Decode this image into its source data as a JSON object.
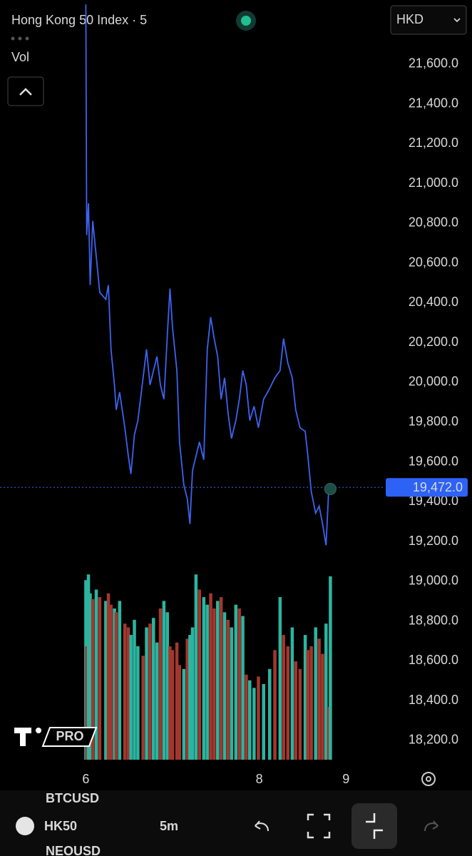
{
  "chart_data": {
    "type": "line",
    "title": "Hong Kong 50 Index · 5",
    "color": "#3d63f0",
    "x": [
      6.0,
      6.01,
      6.03,
      6.05,
      6.08,
      6.12,
      6.16,
      6.23,
      6.26,
      6.29,
      6.33,
      6.35,
      6.39,
      6.45,
      6.49,
      6.52,
      6.56,
      6.6,
      6.66,
      6.7,
      6.74,
      6.78,
      6.82,
      6.86,
      6.9,
      6.94,
      6.97,
      7.0,
      7.05,
      7.08,
      7.13,
      7.17,
      7.2,
      7.23,
      7.27,
      7.31,
      7.36,
      7.4,
      7.44,
      7.48,
      7.52,
      7.56,
      7.6,
      7.64,
      7.68,
      7.73,
      7.77,
      7.81,
      7.85,
      7.89,
      7.94,
      7.99,
      8.05,
      8.12,
      8.18,
      8.24,
      8.28,
      8.33,
      8.38,
      8.42,
      8.47,
      8.53,
      8.56,
      8.6,
      8.65,
      8.69,
      8.73,
      8.77,
      8.8,
      8.82
    ],
    "values": [
      21900,
      20740,
      20900,
      20489,
      20811,
      20632,
      20453,
      20417,
      20489,
      20166,
      19987,
      19862,
      19951,
      19772,
      19629,
      19539,
      19736,
      19808,
      20023,
      20166,
      19987,
      20059,
      20130,
      19987,
      19915,
      20238,
      20471,
      20274,
      20059,
      19700,
      19485,
      19414,
      19288,
      19557,
      19629,
      19700,
      19611,
      20166,
      20328,
      20220,
      20130,
      19915,
      20023,
      19844,
      19718,
      19808,
      19915,
      20059,
      19987,
      19808,
      19880,
      19772,
      19915,
      19969,
      20023,
      20059,
      20220,
      20095,
      20023,
      19862,
      19772,
      19754,
      19629,
      19450,
      19342,
      19378,
      19288,
      19181,
      19450,
      19464
    ],
    "xlim": [
      5.01,
      9.45
    ],
    "xticks": [
      6,
      8,
      9
    ],
    "ylim": [
      18103,
      21922
    ],
    "yticks": [
      {
        "value": 18200,
        "label": "18,200.0"
      },
      {
        "value": 18400,
        "label": "18,400.0"
      },
      {
        "value": 18600,
        "label": "18,600.0"
      },
      {
        "value": 18800,
        "label": "18,800.0"
      },
      {
        "value": 19000,
        "label": "19,000.0"
      },
      {
        "value": 19200,
        "label": "19,200.0"
      },
      {
        "value": 19400,
        "label": "19,400.0"
      },
      {
        "value": 19600,
        "label": "19,600.0"
      },
      {
        "value": 19800,
        "label": "19,800.0"
      },
      {
        "value": 20000,
        "label": "20,000.0"
      },
      {
        "value": 20200,
        "label": "20,200.0"
      },
      {
        "value": 20400,
        "label": "20,400.0"
      },
      {
        "value": 20600,
        "label": "20,600.0"
      },
      {
        "value": 20800,
        "label": "20,800.0"
      },
      {
        "value": 21000,
        "label": "21,000.0"
      },
      {
        "value": 21200,
        "label": "21,200.0"
      },
      {
        "value": 21400,
        "label": "21,400.0"
      },
      {
        "value": 21600,
        "label": "21,600.0"
      }
    ],
    "last_price": {
      "value": 19472,
      "label": "19,472.0"
    },
    "volume": {
      "label": "Vol",
      "lim": [
        0,
        100
      ],
      "values": [
        95,
        60,
        98,
        88,
        85,
        90,
        86,
        84,
        88,
        82,
        80,
        78,
        84,
        72,
        70,
        66,
        74,
        60,
        55,
        70,
        72,
        75,
        62,
        80,
        84,
        78,
        60,
        58,
        62,
        50,
        48,
        64,
        66,
        70,
        98,
        90,
        86,
        82,
        88,
        80,
        84,
        86,
        78,
        74,
        70,
        82,
        80,
        76,
        45,
        42,
        38,
        44,
        40,
        48,
        58,
        86,
        66,
        60,
        70,
        52,
        48,
        66,
        58,
        60,
        70,
        64,
        56,
        72,
        28,
        97
      ],
      "colors": [
        "#2bb5a0",
        "#a3372e",
        "#2bb5a0",
        "#2bb5a0",
        "#a3372e",
        "#2bb5a0",
        "#a3372e",
        "#2bb5a0",
        "#a3372e",
        "#a3372e",
        "#2bb5a0",
        "#a3372e",
        "#2bb5a0",
        "#a3372e",
        "#a3372e",
        "#2bb5a0",
        "#2bb5a0",
        "#2bb5a0",
        "#a3372e",
        "#2bb5a0",
        "#a3372e",
        "#2bb5a0",
        "#2bb5a0",
        "#a3372e",
        "#2bb5a0",
        "#2bb5a0",
        "#a3372e",
        "#a3372e",
        "#a3372e",
        "#a3372e",
        "#2bb5a0",
        "#a3372e",
        "#2bb5a0",
        "#2bb5a0",
        "#2bb5a0",
        "#a3372e",
        "#2bb5a0",
        "#2bb5a0",
        "#a3372e",
        "#a3372e",
        "#2bb5a0",
        "#a3372e",
        "#2bb5a0",
        "#a3372e",
        "#2bb5a0",
        "#2bb5a0",
        "#a3372e",
        "#2bb5a0",
        "#a3372e",
        "#2bb5a0",
        "#2bb5a0",
        "#a3372e",
        "#2bb5a0",
        "#2bb5a0",
        "#a3372e",
        "#2bb5a0",
        "#a3372e",
        "#a3372e",
        "#2bb5a0",
        "#a3372e",
        "#a3372e",
        "#2bb5a0",
        "#a3372e",
        "#a3372e",
        "#2bb5a0",
        "#a3372e",
        "#a3372e",
        "#2bb5a0",
        "#a3372e",
        "#2bb5a0"
      ]
    }
  },
  "header": {
    "currency": "HKD"
  },
  "watermark": "PRO",
  "background_symbols": [
    "BTCUSD",
    "NEOUSD"
  ],
  "toolbar": {
    "symbol": "HK50",
    "interval": "5m"
  }
}
